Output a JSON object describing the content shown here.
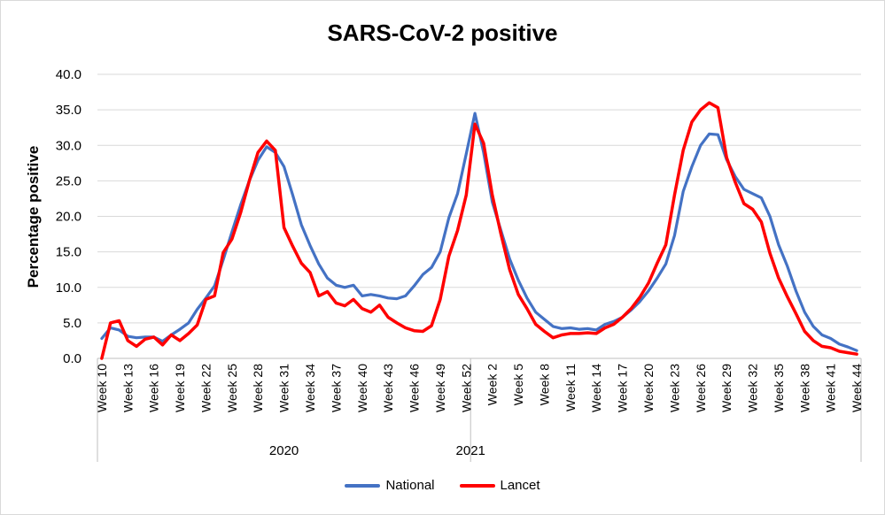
{
  "chart_data": {
    "type": "line",
    "title": "SARS-CoV-2 positive",
    "ylabel": "Percentage positive",
    "xlabel": "",
    "ylim": [
      0,
      40
    ],
    "y_ticks": [
      "0.0",
      "5.0",
      "10.0",
      "15.0",
      "20.0",
      "25.0",
      "30.0",
      "35.0",
      "40.0"
    ],
    "grid": true,
    "legend_position": "bottom",
    "x_labels": [
      "Week 10",
      "Week 13",
      "Week 16",
      "Week 19",
      "Week 22",
      "Week 25",
      "Week 28",
      "Week 31",
      "Week 34",
      "Week 37",
      "Week 40",
      "Week 43",
      "Week 46",
      "Week 49",
      "Week 52",
      "Week 2",
      "Week 5",
      "Week 8",
      "Week 11",
      "Week 14",
      "Week 17",
      "Week 20",
      "Week 23",
      "Week 26",
      "Week 29",
      "Week 32",
      "Week 35",
      "Week 38",
      "Week 41",
      "Week 44"
    ],
    "year_groups": [
      {
        "label": "2020",
        "first": 0,
        "last": 42
      },
      {
        "label": "2021",
        "first": 43,
        "last": 86
      }
    ],
    "series": [
      {
        "name": "National",
        "color": "#4472C4",
        "values": [
          2.8,
          4.3,
          4.0,
          3.1,
          2.9,
          3.0,
          3.0,
          2.4,
          3.3,
          4.1,
          5.0,
          6.9,
          8.5,
          10.2,
          13.9,
          17.8,
          21.6,
          25.0,
          27.9,
          29.8,
          29.0,
          27.0,
          23.0,
          18.8,
          15.9,
          13.3,
          11.3,
          10.3,
          10.0,
          10.3,
          8.8,
          9.0,
          8.8,
          8.5,
          8.4,
          8.8,
          10.2,
          11.8,
          12.8,
          15.0,
          19.8,
          23.2,
          28.8,
          34.5,
          29.0,
          22.0,
          18.0,
          14.0,
          11.0,
          8.5,
          6.5,
          5.5,
          4.5,
          4.2,
          4.3,
          4.1,
          4.2,
          4.0,
          4.8,
          5.2,
          5.8,
          6.8,
          8.0,
          9.5,
          11.3,
          13.3,
          17.3,
          23.5,
          27.0,
          30.0,
          31.6,
          31.5,
          28.0,
          25.6,
          23.8,
          23.2,
          22.6,
          20.0,
          16.0,
          13.0,
          9.5,
          6.5,
          4.5,
          3.3,
          2.8,
          2.0,
          1.6,
          1.1
        ]
      },
      {
        "name": "Lancet",
        "color": "#FF0000",
        "values": [
          0.0,
          5.0,
          5.3,
          2.5,
          1.7,
          2.7,
          3.0,
          1.9,
          3.3,
          2.5,
          3.5,
          4.7,
          8.3,
          8.8,
          14.9,
          16.8,
          20.5,
          25.0,
          29.0,
          30.6,
          29.3,
          18.4,
          15.8,
          13.4,
          12.1,
          8.8,
          9.4,
          7.8,
          7.4,
          8.3,
          7.0,
          6.5,
          7.5,
          5.8,
          5.0,
          4.3,
          3.9,
          3.8,
          4.6,
          8.3,
          14.4,
          18.0,
          23.0,
          33.0,
          30.3,
          23.0,
          17.5,
          12.5,
          9.0,
          7.0,
          4.8,
          3.8,
          2.9,
          3.3,
          3.5,
          3.5,
          3.6,
          3.5,
          4.3,
          4.8,
          5.8,
          7.0,
          8.6,
          10.6,
          13.4,
          16.0,
          23.0,
          29.3,
          33.3,
          35.0,
          36.0,
          35.3,
          28.3,
          24.8,
          21.8,
          21.0,
          19.2,
          14.8,
          11.3,
          8.7,
          6.3,
          3.8,
          2.5,
          1.7,
          1.5,
          1.0,
          0.8,
          0.6
        ]
      }
    ]
  }
}
